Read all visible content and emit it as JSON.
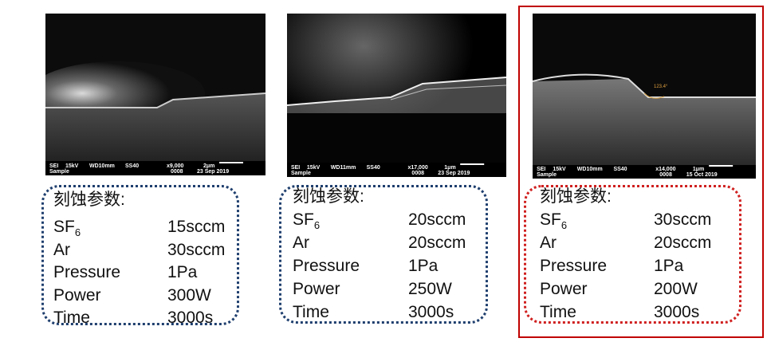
{
  "panels": [
    {
      "image": {
        "line1": [
          "SEI",
          "15kV",
          "WD10mm",
          "SS40",
          "x9,000",
          "2μm"
        ],
        "line2": [
          "Sample",
          "0008",
          "23 Sep 2019"
        ]
      },
      "params": {
        "title": "刻蚀参数:",
        "rows": [
          [
            {
              "label": "SF",
              "subscript": "6"
            },
            "15sccm"
          ],
          [
            "Ar",
            "30sccm"
          ],
          [
            "Pressure",
            "1Pa"
          ],
          [
            "Power",
            "300W"
          ],
          [
            "Time",
            "3000s"
          ]
        ]
      }
    },
    {
      "image": {
        "line1": [
          "SEI",
          "15kV",
          "WD11mm",
          "SS40",
          "x17,000",
          "1μm"
        ],
        "line2": [
          "Sample",
          "0008",
          "23 Sep 2019"
        ]
      },
      "params": {
        "title": "刻蚀参数:",
        "rows": [
          [
            {
              "label": "SF",
              "subscript": "6"
            },
            "20sccm"
          ],
          [
            "Ar",
            "20sccm"
          ],
          [
            "Pressure",
            "1Pa"
          ],
          [
            "Power",
            "250W"
          ],
          [
            "Time",
            "3000s"
          ]
        ]
      }
    },
    {
      "image": {
        "line1": [
          "SEI",
          "15kV",
          "WD10mm",
          "SS40",
          "x14,000",
          "1μm"
        ],
        "line2": [
          "Sample",
          "0008",
          "15 Oct 2019"
        ],
        "annotation": "123.4°"
      },
      "params": {
        "title": "刻蚀参数:",
        "rows": [
          [
            {
              "label": "SF",
              "subscript": "6"
            },
            "30sccm"
          ],
          [
            "Ar",
            "20sccm"
          ],
          [
            "Pressure",
            "1Pa"
          ],
          [
            "Power",
            "200W"
          ],
          [
            "Time",
            "3000s"
          ]
        ]
      }
    }
  ]
}
